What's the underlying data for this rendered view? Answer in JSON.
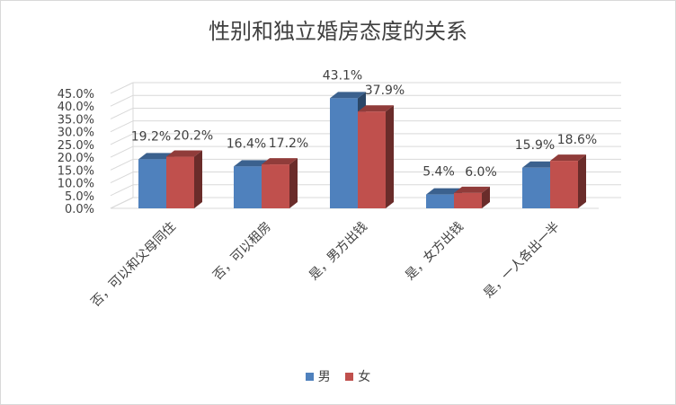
{
  "chart_data": {
    "type": "bar",
    "title": "性别和独立婚房态度的关系",
    "categories": [
      "否，可以和父母同住",
      "否，可以租房",
      "是，男方出钱",
      "是，女方出钱",
      "是，一人各出一半"
    ],
    "series": [
      {
        "name": "男",
        "values": [
          19.2,
          16.4,
          43.1,
          5.4,
          15.9
        ],
        "labels": [
          "19.2%",
          "16.4%",
          "43.1%",
          "5.4%",
          "15.9%"
        ],
        "color": "#4f81bd"
      },
      {
        "name": "女",
        "values": [
          20.2,
          17.2,
          37.9,
          6.0,
          18.6
        ],
        "labels": [
          "20.2%",
          "17.2%",
          "37.9%",
          "6.0%",
          "18.6%"
        ],
        "color": "#c0504d"
      }
    ],
    "y_ticks": [
      "0.0%",
      "5.0%",
      "10.0%",
      "15.0%",
      "20.0%",
      "25.0%",
      "30.0%",
      "35.0%",
      "40.0%",
      "45.0%"
    ],
    "ylim": [
      0,
      45
    ],
    "y_format": "percent",
    "grid": true,
    "legend_position": "bottom",
    "style": "3d-clustered-column"
  }
}
